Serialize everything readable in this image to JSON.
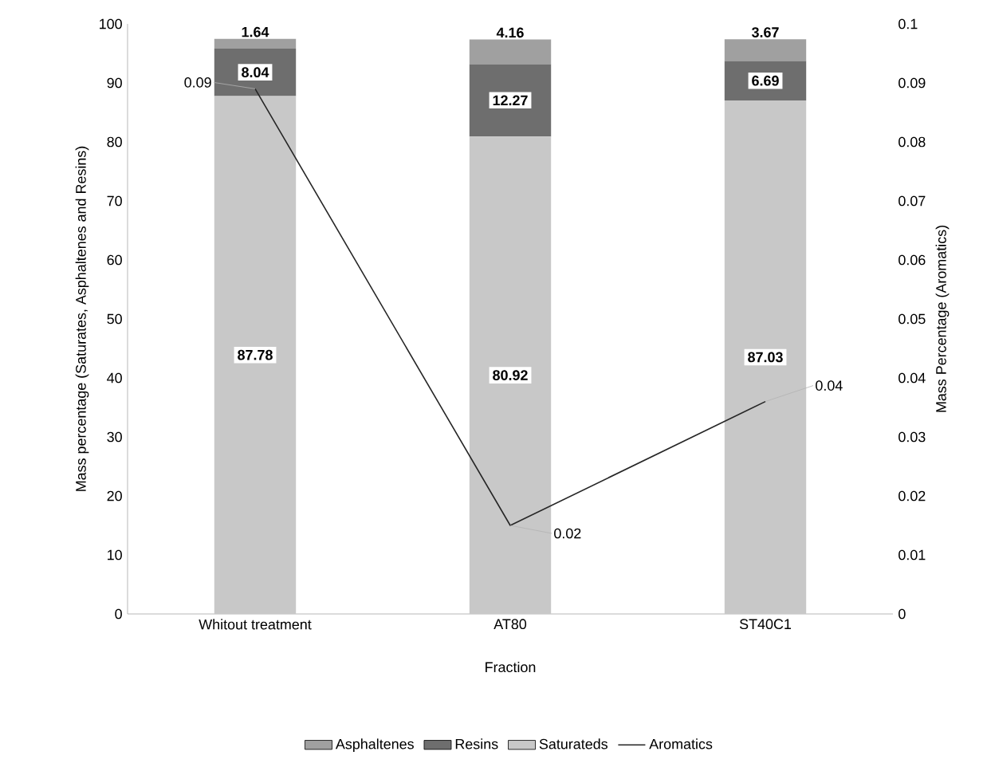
{
  "chart_data": {
    "type": "bar",
    "stacked": true,
    "categories": [
      "Whitout treatment",
      "AT80",
      "ST40C1"
    ],
    "xlabel": "Fraction",
    "ylabel": "Mass percentage (Saturates, Asphaltenes  and  Resins)",
    "y2label": "Mass Percentage (Aromatics)",
    "ylim": [
      0,
      100
    ],
    "yticks": [
      0,
      10,
      20,
      30,
      40,
      50,
      60,
      70,
      80,
      90,
      100
    ],
    "y2lim": [
      0,
      0.1
    ],
    "y2ticks": [
      0,
      0.01,
      0.02,
      0.03,
      0.04,
      0.05,
      0.06,
      0.07,
      0.08,
      0.09,
      0.1
    ],
    "legend": "bottom",
    "data_labels": true,
    "series": [
      {
        "name": "Saturateds",
        "color": "#c8c8c8",
        "values": [
          87.78,
          80.92,
          87.03
        ]
      },
      {
        "name": "Resins",
        "color": "#6e6e6e",
        "values": [
          8.04,
          12.27,
          6.69
        ]
      },
      {
        "name": "Asphaltenes",
        "color": "#a0a0a0",
        "values": [
          1.64,
          4.16,
          3.67
        ]
      },
      {
        "name": "Aromatics",
        "type": "line",
        "axis": "y2",
        "color": "#262626",
        "values": [
          0.089,
          0.015,
          0.036
        ],
        "value_labels": [
          "0.09",
          "0.02",
          "0.04"
        ]
      }
    ]
  }
}
